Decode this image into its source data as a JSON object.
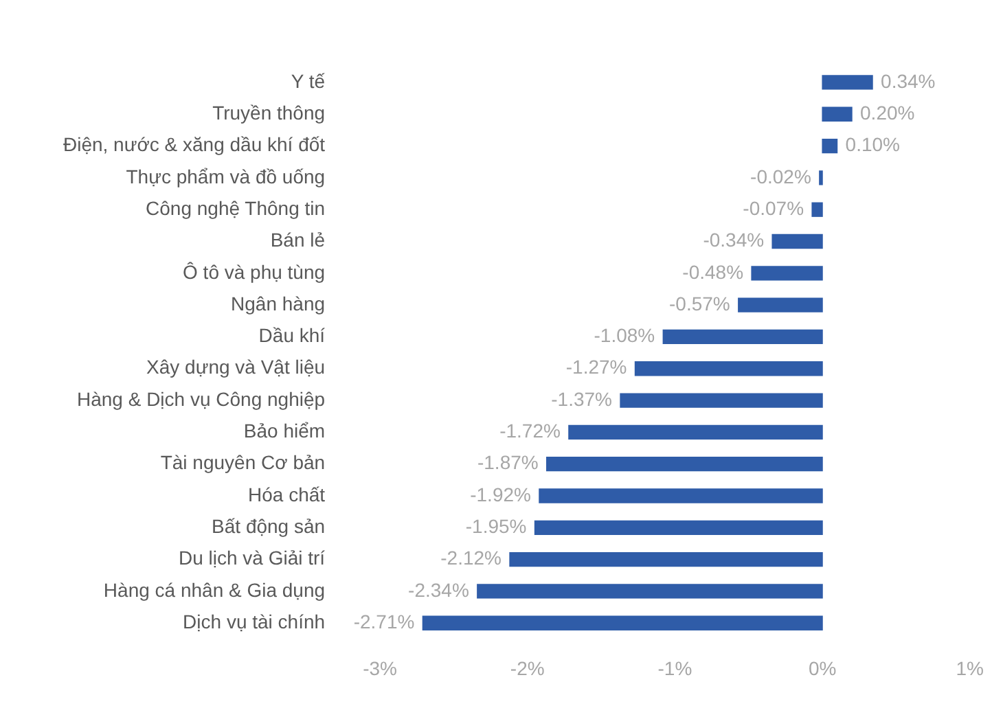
{
  "chart_data": {
    "type": "bar",
    "orientation": "horizontal",
    "categories": [
      "Y tế",
      "Truyền thông",
      "Điện, nước & xăng dầu khí đốt",
      "Thực phẩm và đồ uống",
      "Công nghệ Thông tin",
      "Bán lẻ",
      "Ô tô và phụ tùng",
      "Ngân hàng",
      "Dầu khí",
      "Xây dựng và Vật liệu",
      "Hàng & Dịch vụ Công nghiệp",
      "Bảo hiểm",
      "Tài nguyên Cơ bản",
      "Hóa chất",
      "Bất động sản",
      "Du lịch và Giải trí",
      "Hàng cá nhân & Gia dụng",
      "Dịch vụ tài chính"
    ],
    "values": [
      0.34,
      0.2,
      0.1,
      -0.02,
      -0.07,
      -0.34,
      -0.48,
      -0.57,
      -1.08,
      -1.27,
      -1.37,
      -1.72,
      -1.87,
      -1.92,
      -1.95,
      -2.12,
      -2.34,
      -2.71
    ],
    "value_labels": [
      "0.34%",
      "0.20%",
      "0.10%",
      "-0.02%",
      "-0.07%",
      "-0.34%",
      "-0.48%",
      "-0.57%",
      "-1.08%",
      "-1.27%",
      "-1.37%",
      "-1.72%",
      "-1.87%",
      "-1.92%",
      "-1.95%",
      "-2.12%",
      "-2.34%",
      "-2.71%"
    ],
    "color": "#2f5ca8",
    "xlim": [
      -3,
      1
    ],
    "xticks": [
      {
        "value": -3,
        "label": "-3%"
      },
      {
        "value": -2,
        "label": "-2%"
      },
      {
        "value": -1,
        "label": "-1%"
      },
      {
        "value": 0,
        "label": "0%"
      },
      {
        "value": 1,
        "label": "1%"
      }
    ],
    "grid": false,
    "legend": false
  }
}
